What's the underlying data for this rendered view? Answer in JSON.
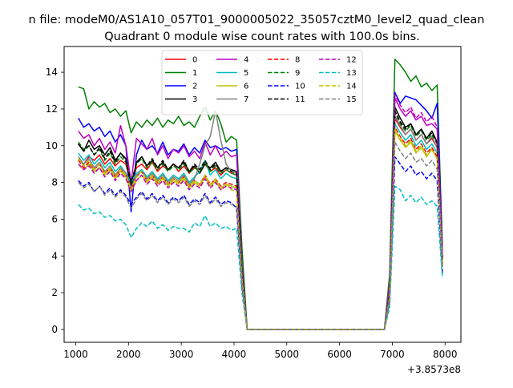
{
  "figure": {
    "suptitle": "n file: modeM0/AS1A10_057T01_9000005022_35057cztM0_level2_quad_clean",
    "title": "Quadrant 0 module wise count rates with 100.0s bins.",
    "offset_label": "+3.8573e8"
  },
  "chart_data": {
    "type": "line",
    "title": "Quadrant 0 module wise count rates with 100.0s bins.",
    "x_offset": 385730000,
    "xlim": [
      780,
      8300
    ],
    "ylim": [
      -0.7,
      15.4
    ],
    "xticks": [
      1000,
      2000,
      3000,
      4000,
      5000,
      6000,
      7000,
      8000
    ],
    "yticks": [
      0,
      2,
      4,
      6,
      8,
      10,
      12,
      14
    ],
    "grid": false,
    "legend_position": "top-center",
    "legend_columns": 4,
    "x": [
      1050,
      1150,
      1250,
      1350,
      1450,
      1550,
      1650,
      1750,
      1850,
      1950,
      2050,
      2150,
      2250,
      2350,
      2450,
      2550,
      2650,
      2750,
      2850,
      2950,
      3050,
      3150,
      3250,
      3350,
      3450,
      3550,
      3650,
      3750,
      3850,
      3950,
      4050,
      4150,
      4250,
      4350,
      4450,
      4550,
      4650,
      4750,
      4850,
      4950,
      5050,
      5150,
      5250,
      5350,
      5450,
      5550,
      5650,
      5750,
      5850,
      5950,
      6050,
      6150,
      6250,
      6350,
      6450,
      6550,
      6650,
      6750,
      6850,
      6950,
      7050,
      7150,
      7250,
      7350,
      7450,
      7550,
      7650,
      7750,
      7850,
      7950
    ],
    "series": [
      {
        "name": "0",
        "color": "#ff0000",
        "dash": "solid",
        "values": [
          9.3,
          9.0,
          9.4,
          9.2,
          9.5,
          9.0,
          9.3,
          8.9,
          9.2,
          9.0,
          7.8,
          8.8,
          9.0,
          8.7,
          9.1,
          8.6,
          8.9,
          8.7,
          9.0,
          8.6,
          8.9,
          8.5,
          8.8,
          8.7,
          9.0,
          8.6,
          8.8,
          8.4,
          8.7,
          8.5,
          8.4,
          3.0,
          0,
          0,
          0,
          0,
          0,
          0,
          0,
          0,
          0,
          0,
          0,
          0,
          0,
          0,
          0,
          0,
          0,
          0,
          0,
          0,
          0,
          0,
          0,
          0,
          0,
          0,
          0,
          2.0,
          11.5,
          11.0,
          10.6,
          10.9,
          10.3,
          10.6,
          10.1,
          10.4,
          9.9,
          3.8
        ]
      },
      {
        "name": "1",
        "color": "#008000",
        "dash": "solid",
        "values": [
          13.2,
          13.1,
          12.0,
          12.4,
          12.1,
          12.3,
          11.8,
          12.0,
          11.6,
          11.9,
          10.7,
          11.3,
          11.0,
          11.4,
          11.1,
          11.5,
          11.0,
          11.4,
          11.2,
          11.6,
          11.1,
          11.3,
          11.0,
          11.6,
          12.1,
          11.4,
          11.9,
          11.2,
          10.2,
          10.5,
          10.3,
          4.5,
          0,
          0,
          0,
          0,
          0,
          0,
          0,
          0,
          0,
          0,
          0,
          0,
          0,
          0,
          0,
          0,
          0,
          0,
          0,
          0,
          0,
          0,
          0,
          0,
          0,
          0,
          0,
          3.0,
          14.7,
          14.4,
          14.0,
          13.5,
          13.8,
          13.2,
          13.4,
          13.0,
          13.3,
          4.5
        ]
      },
      {
        "name": "2",
        "color": "#0000ff",
        "dash": "solid",
        "values": [
          11.5,
          11.0,
          11.2,
          10.8,
          11.0,
          10.5,
          10.8,
          10.2,
          10.6,
          10.0,
          6.4,
          9.5,
          10.3,
          9.8,
          10.0,
          9.6,
          10.2,
          9.5,
          9.8,
          9.7,
          10.1,
          9.5,
          9.9,
          9.6,
          10.3,
          9.9,
          10.0,
          9.8,
          9.9,
          9.7,
          9.8,
          3.5,
          0,
          0,
          0,
          0,
          0,
          0,
          0,
          0,
          0,
          0,
          0,
          0,
          0,
          0,
          0,
          0,
          0,
          0,
          0,
          0,
          0,
          0,
          0,
          0,
          0,
          0,
          0,
          2.5,
          12.9,
          12.3,
          12.7,
          12.6,
          12.5,
          12.2,
          11.9,
          11.5,
          12.3,
          4.0
        ]
      },
      {
        "name": "3",
        "color": "#000000",
        "dash": "solid",
        "values": [
          10.1,
          9.7,
          10.3,
          9.8,
          10.0,
          9.5,
          9.9,
          9.2,
          9.6,
          9.3,
          7.7,
          9.1,
          9.4,
          8.9,
          9.2,
          8.8,
          9.1,
          8.7,
          9.0,
          8.8,
          9.1,
          8.6,
          8.9,
          8.5,
          9.0,
          8.8,
          9.1,
          8.6,
          8.8,
          8.7,
          8.6,
          3.0,
          0,
          0,
          0,
          0,
          0,
          0,
          0,
          0,
          0,
          0,
          0,
          0,
          0,
          0,
          0,
          0,
          0,
          0,
          0,
          0,
          0,
          0,
          0,
          0,
          0,
          0,
          0,
          2.2,
          12.1,
          11.5,
          11.0,
          11.2,
          10.6,
          10.9,
          10.4,
          10.8,
          10.2,
          3.8
        ]
      },
      {
        "name": "4",
        "color": "#bf00bf",
        "dash": "solid",
        "values": [
          10.8,
          10.4,
          10.6,
          10.0,
          10.4,
          9.8,
          10.2,
          9.6,
          11.1,
          10.0,
          8.0,
          10.4,
          10.1,
          9.8,
          10.4,
          9.5,
          10.0,
          9.3,
          9.8,
          9.6,
          10.0,
          9.4,
          9.7,
          9.3,
          10.2,
          9.5,
          10.0,
          9.4,
          9.7,
          9.4,
          9.5,
          3.5,
          0,
          0,
          0,
          0,
          0,
          0,
          0,
          0,
          0,
          0,
          0,
          0,
          0,
          0,
          0,
          0,
          0,
          0,
          0,
          0,
          0,
          0,
          0,
          0,
          0,
          0,
          0,
          2.5,
          12.6,
          12.0,
          11.6,
          11.9,
          11.4,
          11.6,
          11.1,
          11.2,
          10.9,
          4.0
        ]
      },
      {
        "name": "5",
        "color": "#00bfbf",
        "dash": "solid",
        "values": [
          9.6,
          9.2,
          9.5,
          9.0,
          9.3,
          8.8,
          9.1,
          8.6,
          8.9,
          8.5,
          8.0,
          8.5,
          8.7,
          8.3,
          8.6,
          8.2,
          8.5,
          8.1,
          8.4,
          8.2,
          8.5,
          8.0,
          8.3,
          8.6,
          9.2,
          8.4,
          8.7,
          8.2,
          8.5,
          8.3,
          8.2,
          3.0,
          0,
          0,
          0,
          0,
          0,
          0,
          0,
          0,
          0,
          0,
          0,
          0,
          0,
          0,
          0,
          0,
          0,
          0,
          0,
          0,
          0,
          0,
          0,
          0,
          0,
          0,
          0,
          2.0,
          11.2,
          10.7,
          10.3,
          10.6,
          10.0,
          10.3,
          9.8,
          10.1,
          9.6,
          3.5
        ]
      },
      {
        "name": "6",
        "color": "#bfbf00",
        "dash": "solid",
        "values": [
          9.0,
          8.7,
          9.0,
          8.6,
          8.8,
          8.4,
          8.7,
          8.2,
          8.6,
          8.3,
          7.5,
          8.1,
          8.4,
          8.0,
          8.3,
          7.9,
          8.2,
          7.8,
          8.1,
          7.9,
          8.2,
          7.7,
          8.0,
          7.8,
          8.3,
          7.8,
          8.1,
          7.6,
          7.9,
          7.8,
          7.7,
          2.8,
          0,
          0,
          0,
          0,
          0,
          0,
          0,
          0,
          0,
          0,
          0,
          0,
          0,
          0,
          0,
          0,
          0,
          0,
          0,
          0,
          0,
          0,
          0,
          0,
          0,
          0,
          0,
          1.8,
          10.8,
          10.3,
          9.9,
          10.2,
          9.6,
          9.9,
          9.4,
          9.8,
          9.3,
          3.4
        ]
      },
      {
        "name": "7",
        "color": "#808080",
        "dash": "solid",
        "values": [
          9.4,
          9.0,
          9.3,
          8.8,
          9.1,
          8.6,
          8.9,
          8.4,
          8.8,
          8.5,
          7.7,
          8.4,
          8.6,
          8.2,
          8.5,
          8.1,
          8.4,
          8.0,
          8.3,
          8.1,
          8.4,
          7.9,
          8.2,
          9.0,
          10.0,
          10.5,
          11.9,
          10.3,
          9.0,
          8.6,
          8.5,
          3.0,
          0,
          0,
          0,
          0,
          0,
          0,
          0,
          0,
          0,
          0,
          0,
          0,
          0,
          0,
          0,
          0,
          0,
          0,
          0,
          0,
          0,
          0,
          0,
          0,
          0,
          0,
          0,
          2.0,
          11.6,
          11.1,
          10.6,
          10.9,
          10.3,
          10.6,
          10.1,
          10.5,
          9.9,
          3.7
        ]
      },
      {
        "name": "8",
        "color": "#ff0000",
        "dash": "dashed",
        "values": [
          9.2,
          8.8,
          9.1,
          8.7,
          9.0,
          8.5,
          8.8,
          8.3,
          8.7,
          8.4,
          7.6,
          8.3,
          8.6,
          8.1,
          8.4,
          8.0,
          8.3,
          7.9,
          8.2,
          8.0,
          8.3,
          7.8,
          8.1,
          7.9,
          8.4,
          7.9,
          8.2,
          7.8,
          8.0,
          7.9,
          7.8,
          2.8,
          0,
          0,
          0,
          0,
          0,
          0,
          0,
          0,
          0,
          0,
          0,
          0,
          0,
          0,
          0,
          0,
          0,
          0,
          0,
          0,
          0,
          0,
          0,
          0,
          0,
          0,
          0,
          1.8,
          11.0,
          10.5,
          10.1,
          10.4,
          9.8,
          10.1,
          9.6,
          9.9,
          9.4,
          3.5
        ]
      },
      {
        "name": "9",
        "color": "#008000",
        "dash": "dashed",
        "values": [
          10.2,
          9.8,
          10.0,
          9.5,
          9.8,
          9.2,
          9.6,
          9.0,
          9.4,
          9.1,
          8.0,
          9.0,
          9.3,
          8.8,
          9.1,
          8.7,
          9.0,
          8.6,
          8.9,
          8.7,
          9.0,
          8.5,
          8.8,
          8.6,
          9.1,
          8.6,
          8.9,
          8.5,
          8.7,
          8.5,
          8.4,
          3.0,
          0,
          0,
          0,
          0,
          0,
          0,
          0,
          0,
          0,
          0,
          0,
          0,
          0,
          0,
          0,
          0,
          0,
          0,
          0,
          0,
          0,
          0,
          0,
          0,
          0,
          0,
          0,
          2.0,
          11.8,
          11.2,
          10.8,
          11.1,
          10.5,
          10.8,
          10.3,
          10.6,
          10.1,
          3.8
        ]
      },
      {
        "name": "10",
        "color": "#0000ff",
        "dash": "dashed",
        "values": [
          8.1,
          7.8,
          8.0,
          7.5,
          7.8,
          7.4,
          7.7,
          7.3,
          7.6,
          7.3,
          6.8,
          7.2,
          7.5,
          7.1,
          7.4,
          7.0,
          7.3,
          6.9,
          7.2,
          7.0,
          7.3,
          6.8,
          7.1,
          6.9,
          7.4,
          6.9,
          7.2,
          6.8,
          7.0,
          6.9,
          6.6,
          2.4,
          0,
          0,
          0,
          0,
          0,
          0,
          0,
          0,
          0,
          0,
          0,
          0,
          0,
          0,
          0,
          0,
          0,
          0,
          0,
          0,
          0,
          0,
          0,
          0,
          0,
          0,
          0,
          1.5,
          9.4,
          9.0,
          8.6,
          8.9,
          8.4,
          8.6,
          8.2,
          8.5,
          8.1,
          3.0
        ]
      },
      {
        "name": "11",
        "color": "#000000",
        "dash": "dashed",
        "values": [
          10.1,
          9.7,
          10.0,
          9.5,
          9.9,
          9.3,
          9.7,
          9.1,
          9.6,
          9.2,
          8.0,
          9.0,
          9.4,
          8.9,
          9.3,
          8.8,
          9.2,
          8.7,
          9.0,
          8.8,
          9.2,
          8.6,
          9.0,
          8.7,
          9.2,
          8.7,
          9.0,
          8.6,
          8.8,
          8.6,
          8.5,
          3.0,
          0,
          0,
          0,
          0,
          0,
          0,
          0,
          0,
          0,
          0,
          0,
          0,
          0,
          0,
          0,
          0,
          0,
          0,
          0,
          0,
          0,
          0,
          0,
          0,
          0,
          0,
          0,
          2.0,
          11.9,
          11.3,
          10.9,
          11.2,
          10.6,
          10.9,
          10.4,
          10.7,
          10.2,
          3.8
        ]
      },
      {
        "name": "12",
        "color": "#bf00bf",
        "dash": "dashed",
        "values": [
          9.0,
          8.7,
          8.9,
          8.5,
          8.8,
          8.3,
          8.6,
          8.1,
          8.5,
          8.2,
          7.5,
          8.1,
          8.4,
          7.9,
          8.2,
          7.8,
          8.1,
          7.7,
          8.0,
          7.8,
          8.1,
          7.6,
          7.9,
          7.7,
          8.2,
          7.7,
          8.0,
          7.6,
          7.8,
          7.7,
          7.6,
          2.7,
          0,
          0,
          0,
          0,
          0,
          0,
          0,
          0,
          0,
          0,
          0,
          0,
          0,
          0,
          0,
          0,
          0,
          0,
          0,
          0,
          0,
          0,
          0,
          0,
          0,
          0,
          0,
          1.8,
          12.8,
          12.2,
          11.8,
          12.1,
          11.5,
          11.8,
          11.3,
          11.6,
          11.0,
          4.0
        ]
      },
      {
        "name": "13",
        "color": "#00bfbf",
        "dash": "dashed",
        "values": [
          6.8,
          6.5,
          6.6,
          6.3,
          6.4,
          6.1,
          6.2,
          5.9,
          6.0,
          5.7,
          5.0,
          5.5,
          5.8,
          5.6,
          5.9,
          5.5,
          5.7,
          5.4,
          5.6,
          5.5,
          5.5,
          5.3,
          5.8,
          5.6,
          6.2,
          5.6,
          5.8,
          5.5,
          5.6,
          5.4,
          5.5,
          2.0,
          0,
          0,
          0,
          0,
          0,
          0,
          0,
          0,
          0,
          0,
          0,
          0,
          0,
          0,
          0,
          0,
          0,
          0,
          0,
          0,
          0,
          0,
          0,
          0,
          0,
          0,
          0,
          1.2,
          7.8,
          7.6,
          7.0,
          7.3,
          6.9,
          7.2,
          6.8,
          7.0,
          6.7,
          2.8
        ]
      },
      {
        "name": "14",
        "color": "#bfbf00",
        "dash": "dashed",
        "values": [
          9.3,
          8.9,
          9.2,
          8.7,
          9.0,
          8.5,
          8.8,
          8.3,
          8.7,
          8.4,
          7.6,
          8.3,
          8.6,
          8.1,
          8.4,
          8.0,
          8.3,
          7.9,
          8.2,
          8.0,
          8.3,
          7.8,
          8.1,
          7.9,
          8.4,
          7.9,
          8.2,
          7.7,
          7.9,
          7.6,
          7.5,
          2.8,
          0,
          0,
          0,
          0,
          0,
          0,
          0,
          0,
          0,
          0,
          0,
          0,
          0,
          0,
          0,
          0,
          0,
          0,
          0,
          0,
          0,
          0,
          0,
          0,
          0,
          0,
          0,
          1.8,
          10.9,
          10.4,
          10.0,
          10.3,
          9.7,
          10.0,
          9.5,
          9.8,
          9.3,
          3.5
        ]
      },
      {
        "name": "15",
        "color": "#808080",
        "dash": "dashed",
        "values": [
          8.0,
          7.7,
          7.9,
          7.5,
          7.8,
          7.3,
          7.6,
          7.2,
          7.5,
          7.2,
          6.6,
          7.1,
          7.4,
          7.0,
          7.3,
          6.9,
          7.2,
          6.8,
          7.1,
          6.9,
          7.2,
          6.7,
          7.0,
          6.8,
          7.3,
          6.8,
          7.1,
          6.7,
          6.9,
          6.8,
          6.7,
          2.4,
          0,
          0,
          0,
          0,
          0,
          0,
          0,
          0,
          0,
          0,
          0,
          0,
          0,
          0,
          0,
          0,
          0,
          0,
          0,
          0,
          0,
          0,
          0,
          0,
          0,
          0,
          0,
          1.6,
          10.2,
          9.7,
          9.3,
          9.6,
          9.1,
          9.3,
          8.9,
          9.2,
          8.7,
          3.3
        ]
      }
    ]
  }
}
